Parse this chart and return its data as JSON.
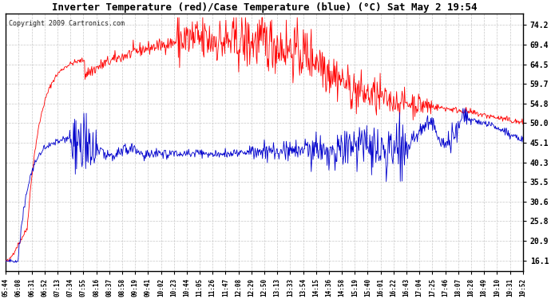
{
  "title": "Inverter Temperature (red)/Case Temperature (blue) (°C) Sat May 2 19:54",
  "copyright": "Copyright 2009 Cartronics.com",
  "background_color": "#ffffff",
  "plot_bg_color": "#ffffff",
  "grid_color": "#c8c8c8",
  "red_color": "#ff0000",
  "blue_color": "#0000cc",
  "yticks": [
    16.1,
    20.9,
    25.8,
    30.6,
    35.5,
    40.3,
    45.1,
    50.0,
    54.8,
    59.7,
    64.5,
    69.4,
    74.2
  ],
  "ylim": [
    13.5,
    77.0
  ],
  "xtick_labels": [
    "05:44",
    "06:08",
    "06:31",
    "06:52",
    "07:13",
    "07:34",
    "07:55",
    "08:16",
    "08:37",
    "08:58",
    "09:19",
    "09:41",
    "10:02",
    "10:23",
    "10:44",
    "11:05",
    "11:26",
    "11:47",
    "12:08",
    "12:29",
    "12:50",
    "13:13",
    "13:33",
    "13:54",
    "14:15",
    "14:36",
    "14:58",
    "15:19",
    "15:40",
    "16:01",
    "16:22",
    "16:43",
    "17:04",
    "17:25",
    "17:46",
    "18:07",
    "18:28",
    "18:49",
    "19:10",
    "19:31",
    "19:52"
  ]
}
